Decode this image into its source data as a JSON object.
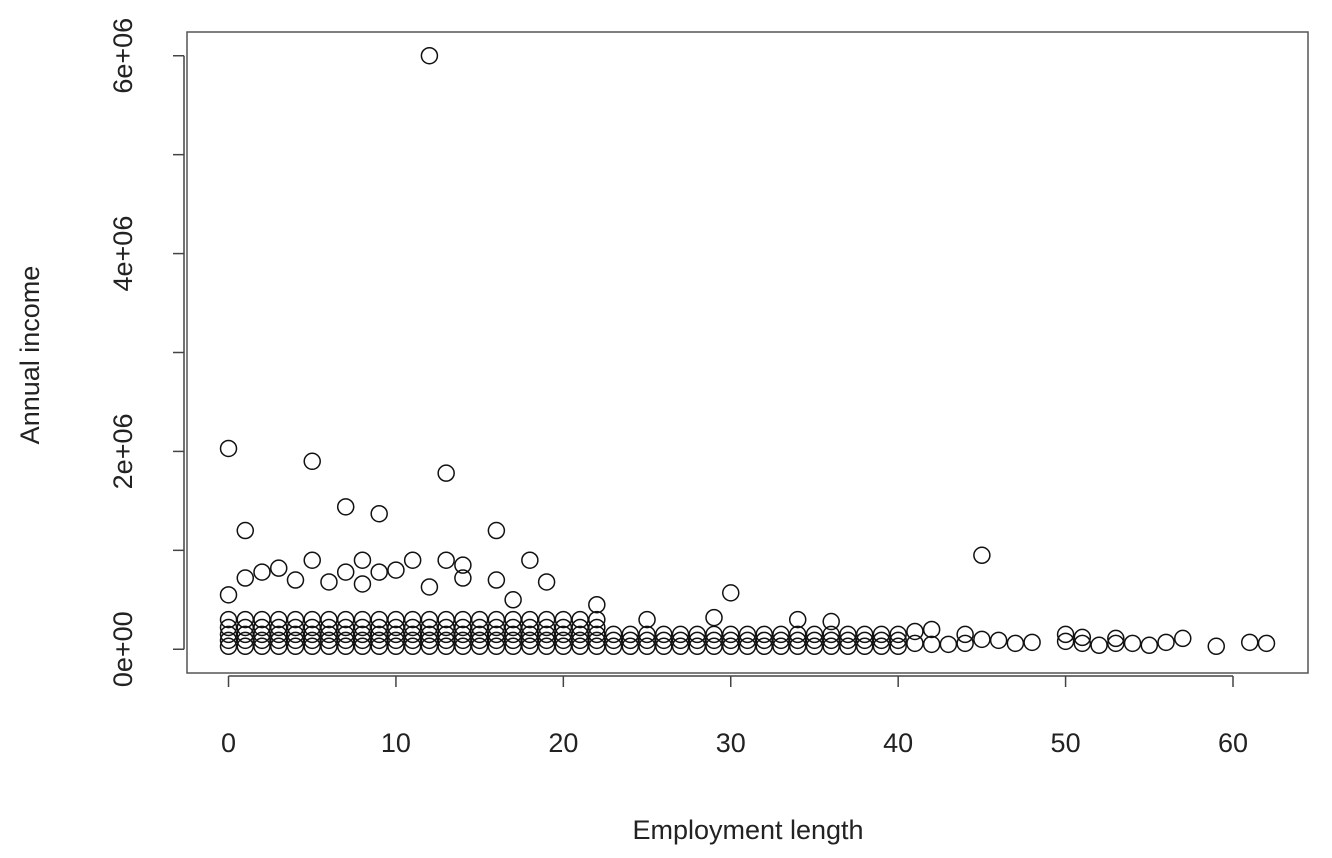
{
  "chart_data": {
    "type": "scatter",
    "x_label": "Employment length",
    "y_label": "Annual income",
    "xlim": [
      -2.48,
      64.48
    ],
    "ylim": [
      -240000,
      6240000
    ],
    "xticks": [
      0,
      10,
      20,
      30,
      40,
      50,
      60
    ],
    "yticks": [
      {
        "value": 0,
        "label": "0e+00"
      },
      {
        "value": 2000000,
        "label": "2e+06"
      },
      {
        "value": 4000000,
        "label": "4e+06"
      },
      {
        "value": 6000000,
        "label": "6e+06"
      }
    ],
    "yminorticks": [
      1000000,
      3000000,
      5000000
    ],
    "series": [
      {
        "color": "#111111",
        "x": [
          0,
          0,
          0,
          0,
          0,
          1,
          1,
          1,
          1,
          1,
          2,
          2,
          2,
          2,
          2,
          3,
          3,
          3,
          3,
          3,
          4,
          4,
          4,
          4,
          4,
          5,
          5,
          5,
          5,
          5,
          6,
          6,
          6,
          6,
          6,
          7,
          7,
          7,
          7,
          7,
          8,
          8,
          8,
          8,
          8,
          9,
          9,
          9,
          9,
          9,
          10,
          10,
          10,
          10,
          10,
          11,
          11,
          11,
          11,
          11,
          12,
          12,
          12,
          12,
          12,
          13,
          13,
          13,
          13,
          13,
          14,
          14,
          14,
          14,
          14,
          15,
          15,
          15,
          15,
          15,
          16,
          16,
          16,
          16,
          16,
          17,
          17,
          17,
          17,
          17,
          18,
          18,
          18,
          18,
          18,
          19,
          19,
          19,
          19,
          19,
          20,
          20,
          20,
          20,
          20,
          21,
          21,
          21,
          21,
          21,
          22,
          22,
          22,
          22,
          22,
          23,
          23,
          23,
          24,
          24,
          24,
          25,
          25,
          25,
          26,
          26,
          26,
          27,
          27,
          27,
          28,
          28,
          28,
          29,
          29,
          29,
          30,
          30,
          30,
          31,
          31,
          31,
          32,
          32,
          32,
          33,
          33,
          33,
          34,
          34,
          34,
          35,
          35,
          35,
          36,
          36,
          36,
          37,
          37,
          37,
          38,
          38,
          38,
          39,
          39,
          39,
          40,
          40,
          40,
          41,
          41,
          42,
          42,
          43,
          44,
          44,
          45,
          46,
          47,
          48,
          50,
          50,
          51,
          51,
          52,
          53,
          53,
          54,
          55,
          56,
          57,
          59,
          61,
          62,
          0,
          5,
          12,
          13,
          7,
          9,
          1,
          16,
          45,
          5,
          8,
          11,
          13,
          18,
          14,
          3,
          2,
          7,
          9,
          10,
          1,
          4,
          6,
          8,
          14,
          16,
          19,
          12,
          30,
          0,
          17,
          22,
          34,
          29,
          36,
          25
        ],
        "values": [
          30000,
          90000,
          150000,
          220000,
          300000,
          30000,
          90000,
          150000,
          220000,
          300000,
          30000,
          90000,
          150000,
          220000,
          300000,
          30000,
          90000,
          150000,
          220000,
          300000,
          30000,
          90000,
          150000,
          220000,
          300000,
          30000,
          90000,
          150000,
          220000,
          300000,
          30000,
          90000,
          150000,
          220000,
          300000,
          30000,
          90000,
          150000,
          220000,
          300000,
          30000,
          90000,
          150000,
          220000,
          300000,
          30000,
          90000,
          150000,
          220000,
          300000,
          30000,
          90000,
          150000,
          220000,
          300000,
          30000,
          90000,
          150000,
          220000,
          300000,
          30000,
          90000,
          150000,
          220000,
          300000,
          30000,
          90000,
          150000,
          220000,
          300000,
          30000,
          90000,
          150000,
          220000,
          300000,
          30000,
          90000,
          150000,
          220000,
          300000,
          30000,
          90000,
          150000,
          220000,
          300000,
          30000,
          90000,
          150000,
          220000,
          300000,
          30000,
          90000,
          150000,
          220000,
          300000,
          30000,
          90000,
          150000,
          220000,
          300000,
          30000,
          90000,
          150000,
          220000,
          300000,
          30000,
          90000,
          150000,
          220000,
          300000,
          30000,
          90000,
          150000,
          220000,
          300000,
          30000,
          90000,
          150000,
          30000,
          90000,
          150000,
          30000,
          90000,
          150000,
          30000,
          90000,
          150000,
          30000,
          90000,
          150000,
          30000,
          90000,
          150000,
          30000,
          90000,
          150000,
          30000,
          90000,
          150000,
          30000,
          90000,
          150000,
          30000,
          90000,
          150000,
          30000,
          90000,
          150000,
          30000,
          90000,
          150000,
          30000,
          90000,
          150000,
          30000,
          90000,
          150000,
          30000,
          90000,
          150000,
          30000,
          90000,
          150000,
          30000,
          90000,
          150000,
          30000,
          90000,
          150000,
          60000,
          180000,
          50000,
          200000,
          50000,
          60000,
          150000,
          100000,
          90000,
          60000,
          70000,
          80000,
          150000,
          60000,
          120000,
          40000,
          60000,
          110000,
          60000,
          40000,
          70000,
          110000,
          30000,
          70000,
          60000,
          2030000,
          1900000,
          6000000,
          1780000,
          1440000,
          1370000,
          1200000,
          1200000,
          950000,
          900000,
          900000,
          900000,
          900000,
          900000,
          850000,
          820000,
          780000,
          780000,
          780000,
          800000,
          720000,
          700000,
          680000,
          660000,
          720000,
          700000,
          680000,
          630000,
          570000,
          550000,
          500000,
          450000,
          300000,
          320000,
          280000,
          300000
        ]
      }
    ]
  }
}
